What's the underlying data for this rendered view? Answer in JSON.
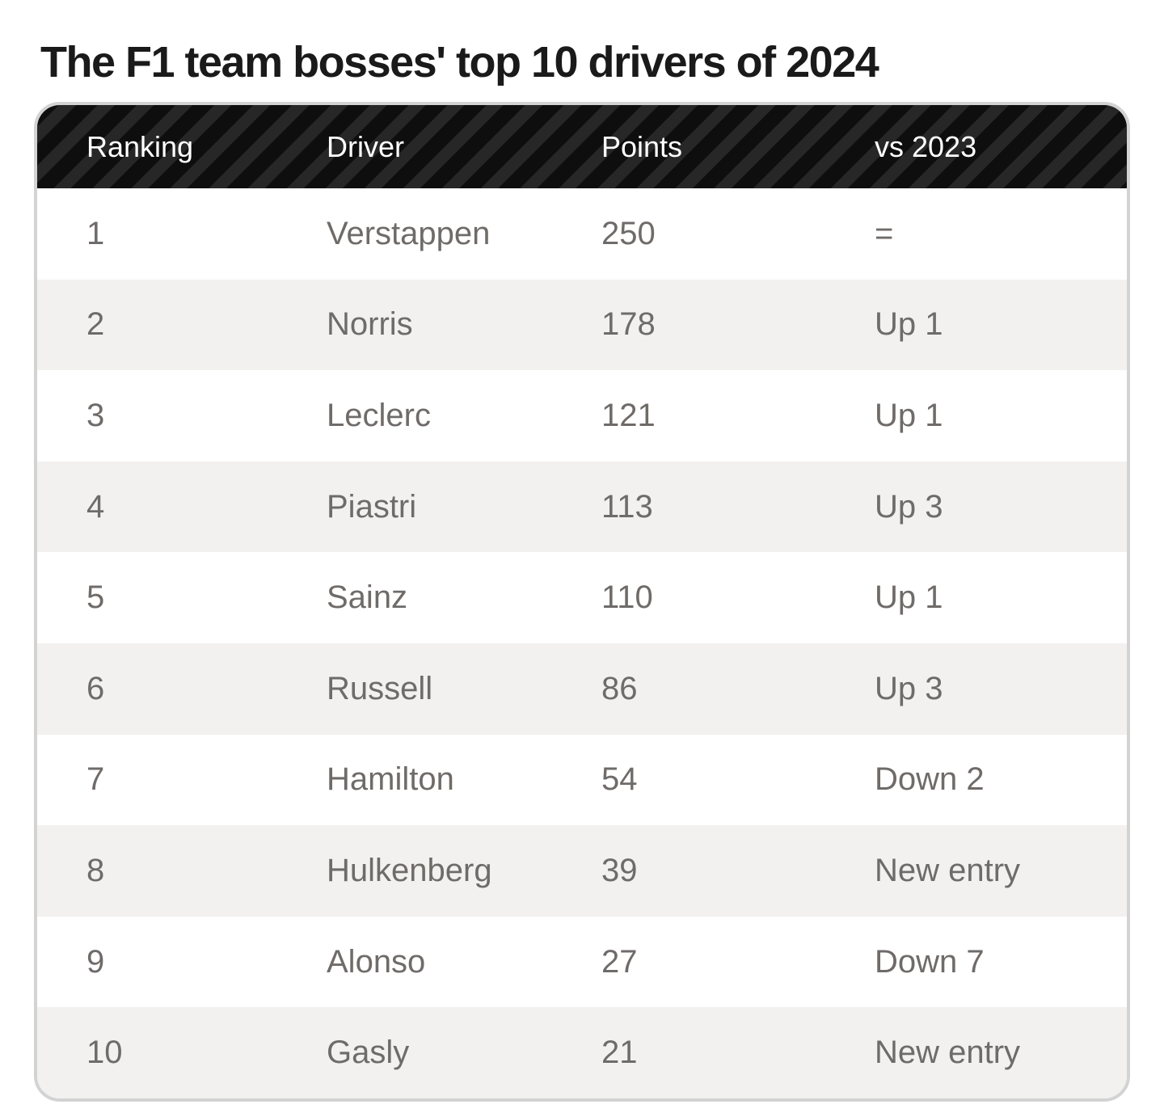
{
  "page": {
    "title": "The F1 team bosses' top 10 drivers of 2024"
  },
  "table": {
    "columns": [
      "Ranking",
      "Driver",
      "Points",
      "vs 2023"
    ],
    "rows": [
      {
        "ranking": "1",
        "driver": "Verstappen",
        "points": "250",
        "change": "="
      },
      {
        "ranking": "2",
        "driver": "Norris",
        "points": "178",
        "change": "Up 1"
      },
      {
        "ranking": "3",
        "driver": "Leclerc",
        "points": "121",
        "change": "Up 1"
      },
      {
        "ranking": "4",
        "driver": "Piastri",
        "points": "113",
        "change": "Up 3"
      },
      {
        "ranking": "5",
        "driver": "Sainz",
        "points": "110",
        "change": "Up 1"
      },
      {
        "ranking": "6",
        "driver": "Russell",
        "points": "86",
        "change": "Up 3"
      },
      {
        "ranking": "7",
        "driver": "Hamilton",
        "points": "54",
        "change": "Down 2"
      },
      {
        "ranking": "8",
        "driver": "Hulkenberg",
        "points": "39",
        "change": "New entry"
      },
      {
        "ranking": "9",
        "driver": "Alonso",
        "points": "27",
        "change": "Down 7"
      },
      {
        "ranking": "10",
        "driver": "Gasly",
        "points": "21",
        "change": "New entry"
      }
    ]
  },
  "colors": {
    "title_text": "#1a1a1a",
    "header_stripe_dark": "#0e0e0e",
    "header_stripe_light": "#272727",
    "header_text": "#ffffff",
    "row_text": "#6f6b69",
    "row_alt_background": "#f2f1ef",
    "card_border": "#d3d3d3"
  },
  "chart_data": {
    "type": "table",
    "title": "The F1 team bosses' top 10 drivers of 2024",
    "columns": [
      "Ranking",
      "Driver",
      "Points",
      "vs 2023"
    ],
    "rows": [
      [
        1,
        "Verstappen",
        250,
        "="
      ],
      [
        2,
        "Norris",
        178,
        "Up 1"
      ],
      [
        3,
        "Leclerc",
        121,
        "Up 1"
      ],
      [
        4,
        "Piastri",
        113,
        "Up 3"
      ],
      [
        5,
        "Sainz",
        110,
        "Up 1"
      ],
      [
        6,
        "Russell",
        86,
        "Up 3"
      ],
      [
        7,
        "Hamilton",
        54,
        "Down 2"
      ],
      [
        8,
        "Hulkenberg",
        39,
        "New entry"
      ],
      [
        9,
        "Alonso",
        27,
        "Down 7"
      ],
      [
        10,
        "Gasly",
        21,
        "New entry"
      ]
    ],
    "layout": {
      "header_style": "black diagonal hazard stripes, white text",
      "alternating_rows": true,
      "rounded_corners": true
    }
  }
}
